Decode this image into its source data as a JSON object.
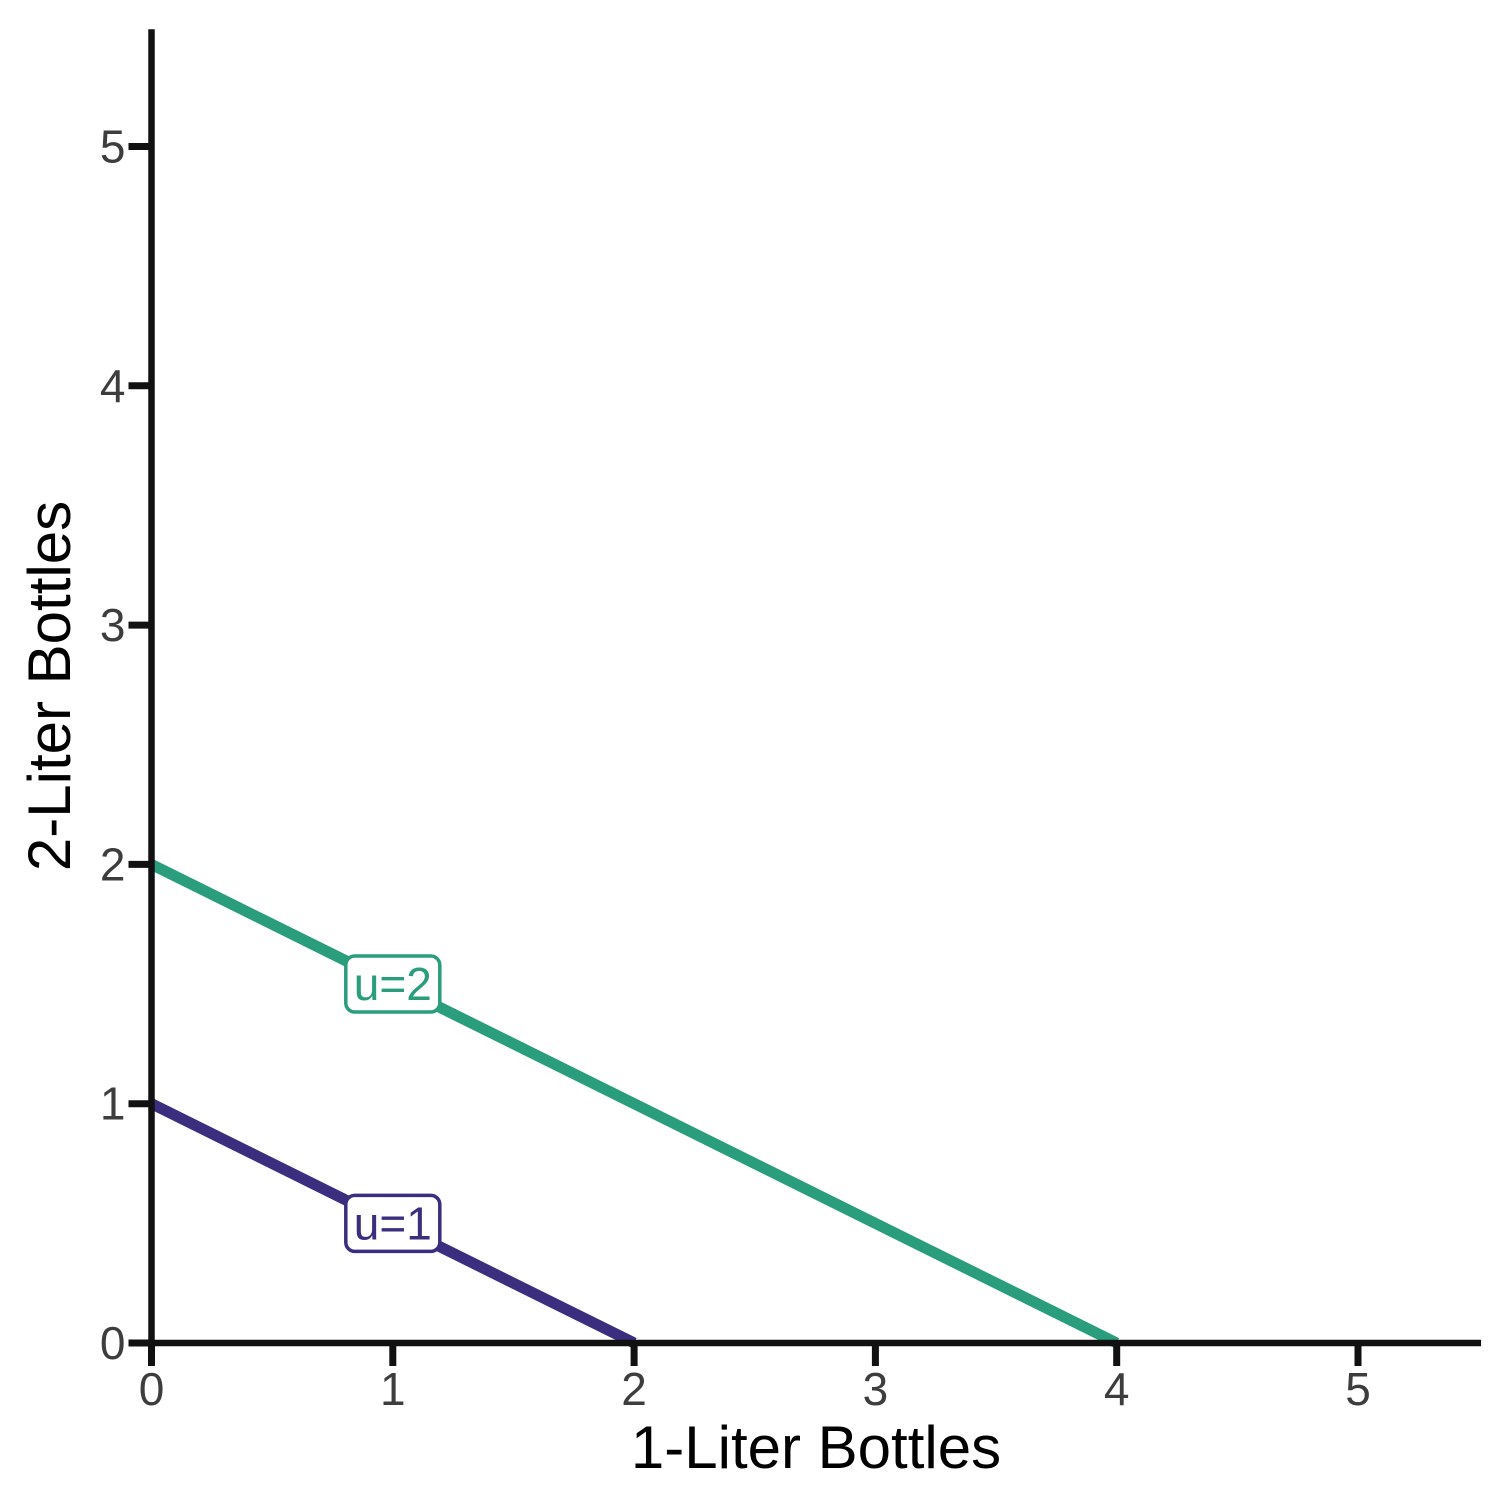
{
  "chart_data": {
    "type": "line",
    "title": "",
    "xlabel": "1-Liter Bottles",
    "ylabel": "2-Liter Bottles",
    "xlim": [
      0,
      5.51
    ],
    "ylim": [
      0,
      5.49
    ],
    "xticks": [
      "0",
      "1",
      "2",
      "3",
      "4",
      "5"
    ],
    "yticks": [
      "0",
      "1",
      "2",
      "3",
      "4",
      "5"
    ],
    "grid": false,
    "legend": "inline-boxed-labels",
    "series": [
      {
        "name": "u=2",
        "color": "#2a9d7c",
        "points": [
          [
            0,
            2
          ],
          [
            4,
            0
          ]
        ],
        "label": {
          "text": "u=2",
          "x": 1.0,
          "y": 1.5
        }
      },
      {
        "name": "u=1",
        "color": "#3b2e7e",
        "points": [
          [
            0,
            1
          ],
          [
            2,
            0
          ]
        ],
        "label": {
          "text": "u=1",
          "x": 1.0,
          "y": 0.5
        }
      }
    ],
    "axis_color": "#111111",
    "tick_label_color": "#3d3d3d",
    "title_color": "#000000",
    "label_box_fill": "#ffffff",
    "background": "#ffffff"
  }
}
